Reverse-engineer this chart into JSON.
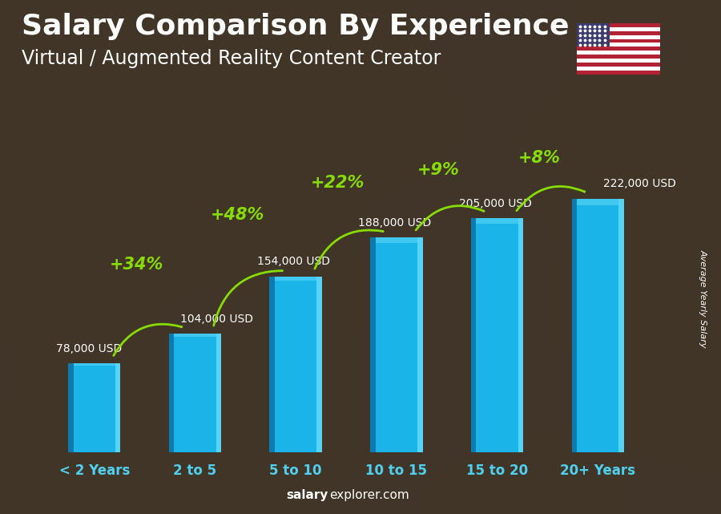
{
  "categories": [
    "< 2 Years",
    "2 to 5",
    "5 to 10",
    "10 to 15",
    "15 to 20",
    "20+ Years"
  ],
  "values": [
    78000,
    104000,
    154000,
    188000,
    205000,
    222000
  ],
  "value_labels": [
    "78,000 USD",
    "104,000 USD",
    "154,000 USD",
    "188,000 USD",
    "205,000 USD",
    "222,000 USD"
  ],
  "pct_labels": [
    "+34%",
    "+48%",
    "+22%",
    "+9%",
    "+8%"
  ],
  "bar_color_main": "#1ab4e8",
  "bar_color_left": "#0d7ab0",
  "bar_color_right": "#55d4f8",
  "bar_color_top": "#40c8f0",
  "title": "Salary Comparison By Experience",
  "subtitle": "Virtual / Augmented Reality Content Creator",
  "ylabel": "Average Yearly Salary",
  "source_bold": "salary",
  "source_normal": "explorer.com",
  "bg_color": "#3a3a3a",
  "text_color_white": "#ffffff",
  "text_color_green": "#88dd00",
  "title_fontsize": 26,
  "subtitle_fontsize": 17,
  "label_fontsize": 10,
  "pct_fontsize": 15,
  "cat_fontsize": 12,
  "ylim": [
    0,
    270000
  ],
  "figsize": [
    9.0,
    6.41
  ]
}
